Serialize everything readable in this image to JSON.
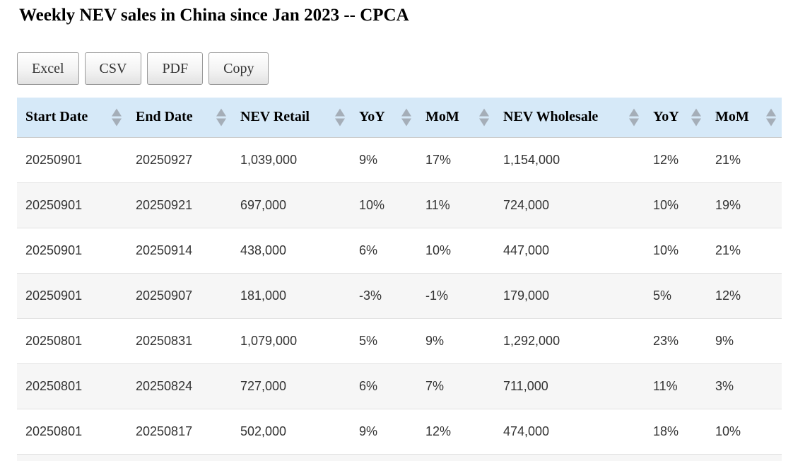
{
  "page": {
    "title": "Weekly NEV sales in China since Jan 2023 -- CPCA"
  },
  "toolbar": {
    "buttons": [
      {
        "id": "excel",
        "label": "Excel"
      },
      {
        "id": "csv",
        "label": "CSV"
      },
      {
        "id": "pdf",
        "label": "PDF"
      },
      {
        "id": "copy",
        "label": "Copy"
      }
    ]
  },
  "table": {
    "columns": [
      {
        "label": "Start Date",
        "sort_icon": "sort-both-icon"
      },
      {
        "label": "End Date",
        "sort_icon": "sort-both-icon"
      },
      {
        "label": "NEV Retail",
        "sort_icon": "sort-both-icon"
      },
      {
        "label": "YoY",
        "sort_icon": "sort-both-icon"
      },
      {
        "label": "MoM",
        "sort_icon": "sort-both-icon"
      },
      {
        "label": "NEV Wholesale",
        "sort_icon": "sort-both-icon"
      },
      {
        "label": "YoY",
        "sort_icon": "sort-both-icon"
      },
      {
        "label": "MoM",
        "sort_icon": "sort-both-icon"
      }
    ],
    "rows": [
      [
        "20250901",
        "20250927",
        "1,039,000",
        "9%",
        "17%",
        "1,154,000",
        "12%",
        "21%"
      ],
      [
        "20250901",
        "20250921",
        "697,000",
        "10%",
        "11%",
        "724,000",
        "10%",
        "19%"
      ],
      [
        "20250901",
        "20250914",
        "438,000",
        "6%",
        "10%",
        "447,000",
        "10%",
        "21%"
      ],
      [
        "20250901",
        "20250907",
        "181,000",
        "-3%",
        "-1%",
        "179,000",
        "5%",
        "12%"
      ],
      [
        "20250801",
        "20250831",
        "1,079,000",
        "5%",
        "9%",
        "1,292,000",
        "23%",
        "9%"
      ],
      [
        "20250801",
        "20250824",
        "727,000",
        "6%",
        "7%",
        "711,000",
        "11%",
        "3%"
      ],
      [
        "20250801",
        "20250817",
        "502,000",
        "9%",
        "12%",
        "474,000",
        "18%",
        "10%"
      ]
    ]
  },
  "colors": {
    "header_bg": "#d6e9f8",
    "stripe_bg": "#f6f6f6",
    "row_border": "#e2e2e2",
    "sort_arrow": "#a5aeb8",
    "button_border": "#999999"
  }
}
